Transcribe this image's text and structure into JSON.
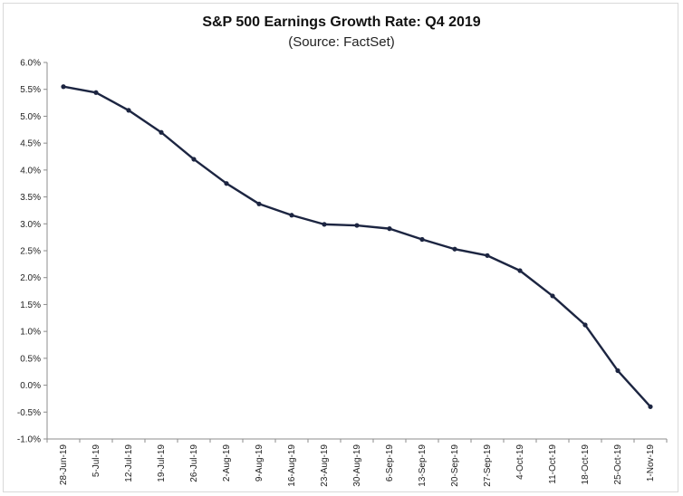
{
  "chart_data": {
    "type": "line",
    "title": "S&P 500 Earnings Growth Rate: Q4 2019",
    "subtitle": "(Source: FactSet)",
    "xlabel": "",
    "ylabel": "",
    "ylim": [
      -1.0,
      6.0
    ],
    "yticks": [
      "6.0%",
      "5.5%",
      "5.0%",
      "4.5%",
      "4.0%",
      "3.5%",
      "3.0%",
      "2.5%",
      "2.0%",
      "1.5%",
      "1.0%",
      "0.5%",
      "0.0%",
      "-0.5%",
      "-1.0%"
    ],
    "ytick_values": [
      6.0,
      5.5,
      5.0,
      4.5,
      4.0,
      3.5,
      3.0,
      2.5,
      2.0,
      1.5,
      1.0,
      0.5,
      0.0,
      -0.5,
      -1.0
    ],
    "grid": false,
    "legend": "none",
    "categories": [
      "28-Jun-19",
      "5-Jul-19",
      "12-Jul-19",
      "19-Jul-19",
      "26-Jul-19",
      "2-Aug-19",
      "9-Aug-19",
      "16-Aug-19",
      "23-Aug-19",
      "30-Aug-19",
      "6-Sep-19",
      "13-Sep-19",
      "20-Sep-19",
      "27-Sep-19",
      "4-Oct-19",
      "11-Oct-19",
      "18-Oct-19",
      "25-Oct-19",
      "1-Nov-19"
    ],
    "series": [
      {
        "values": [
          5.55,
          5.44,
          5.11,
          4.7,
          4.2,
          3.75,
          3.37,
          3.16,
          2.99,
          2.97,
          2.91,
          2.71,
          2.53,
          2.41,
          2.13,
          1.66,
          1.12,
          0.27,
          -0.4
        ],
        "color": "#1c2541"
      }
    ]
  }
}
